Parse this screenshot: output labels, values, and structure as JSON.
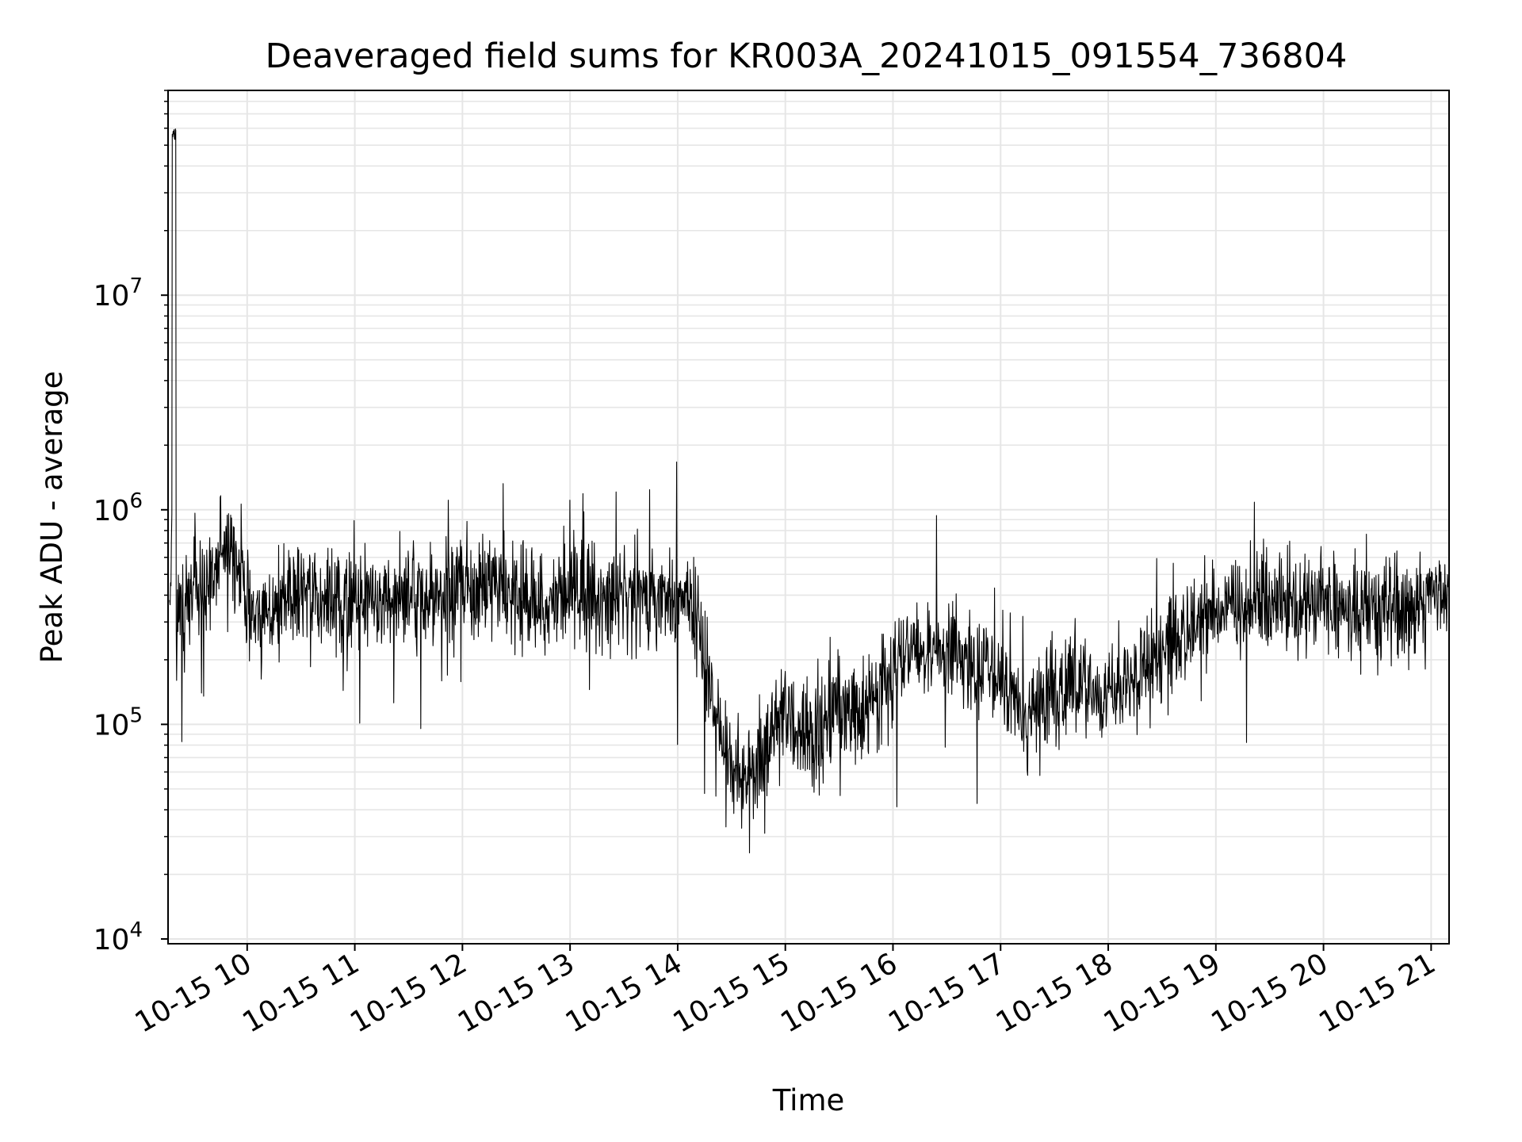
{
  "chart_data": {
    "type": "line",
    "title": "Deaveraged field sums for KR003A_20241015_091554_736804",
    "xlabel": "Time",
    "ylabel": "Peak ADU - average",
    "y_scale": "log",
    "ylim": [
      9500,
      90000000
    ],
    "xlim": [
      "2024-10-15 09:15:54",
      "2024-10-15 21:10:00"
    ],
    "grid": true,
    "line_color": "#000000",
    "x_ticks": [
      {
        "label": "10-15 10",
        "time": "2024-10-15 10:00"
      },
      {
        "label": "10-15 11",
        "time": "2024-10-15 11:00"
      },
      {
        "label": "10-15 12",
        "time": "2024-10-15 12:00"
      },
      {
        "label": "10-15 13",
        "time": "2024-10-15 13:00"
      },
      {
        "label": "10-15 14",
        "time": "2024-10-15 14:00"
      },
      {
        "label": "10-15 15",
        "time": "2024-10-15 15:00"
      },
      {
        "label": "10-15 16",
        "time": "2024-10-15 16:00"
      },
      {
        "label": "10-15 17",
        "time": "2024-10-15 17:00"
      },
      {
        "label": "10-15 18",
        "time": "2024-10-15 18:00"
      },
      {
        "label": "10-15 19",
        "time": "2024-10-15 19:00"
      },
      {
        "label": "10-15 20",
        "time": "2024-10-15 20:00"
      },
      {
        "label": "10-15 21",
        "time": "2024-10-15 21:00"
      }
    ],
    "y_ticks": [
      {
        "value": 10000,
        "base": "10",
        "exp": "4"
      },
      {
        "value": 100000,
        "base": "10",
        "exp": "5"
      },
      {
        "value": 1000000,
        "base": "10",
        "exp": "6"
      },
      {
        "value": 10000000,
        "base": "10",
        "exp": "7"
      }
    ],
    "series": [
      {
        "x": [
          "2024-10-15 09:16",
          "2024-10-15 09:18",
          "2024-10-15 09:20",
          "2024-10-15 09:25",
          "2024-10-15 09:30",
          "2024-10-15 09:35",
          "2024-10-15 09:40",
          "2024-10-15 09:45",
          "2024-10-15 09:50",
          "2024-10-15 09:55",
          "2024-10-15 10:00",
          "2024-10-15 10:10",
          "2024-10-15 10:20",
          "2024-10-15 10:30",
          "2024-10-15 10:40",
          "2024-10-15 10:50",
          "2024-10-15 11:00",
          "2024-10-15 11:15",
          "2024-10-15 11:30",
          "2024-10-15 11:45",
          "2024-10-15 12:00",
          "2024-10-15 12:15",
          "2024-10-15 12:30",
          "2024-10-15 12:45",
          "2024-10-15 13:00",
          "2024-10-15 13:15",
          "2024-10-15 13:30",
          "2024-10-15 13:45",
          "2024-10-15 14:00",
          "2024-10-15 14:10",
          "2024-10-15 14:15",
          "2024-10-15 14:20",
          "2024-10-15 14:30",
          "2024-10-15 14:45",
          "2024-10-15 15:00",
          "2024-10-15 15:15",
          "2024-10-15 15:30",
          "2024-10-15 15:45",
          "2024-10-15 16:00",
          "2024-10-15 16:15",
          "2024-10-15 16:30",
          "2024-10-15 16:45",
          "2024-10-15 17:00",
          "2024-10-15 17:15",
          "2024-10-15 17:30",
          "2024-10-15 17:45",
          "2024-10-15 18:00",
          "2024-10-15 18:15",
          "2024-10-15 18:30",
          "2024-10-15 18:45",
          "2024-10-15 19:00",
          "2024-10-15 19:15",
          "2024-10-15 19:30",
          "2024-10-15 19:45",
          "2024-10-15 20:00",
          "2024-10-15 20:15",
          "2024-10-15 20:30",
          "2024-10-15 20:45",
          "2024-10-15 21:00",
          "2024-10-15 21:10"
        ],
        "y": [
          300000,
          550000,
          320000,
          350000,
          380000,
          420000,
          480000,
          650000,
          700000,
          600000,
          350000,
          320000,
          380000,
          420000,
          380000,
          350000,
          380000,
          400000,
          420000,
          380000,
          450000,
          420000,
          380000,
          350000,
          420000,
          400000,
          380000,
          420000,
          380000,
          350000,
          200000,
          120000,
          60000,
          65000,
          110000,
          90000,
          120000,
          110000,
          180000,
          220000,
          250000,
          190000,
          150000,
          120000,
          140000,
          150000,
          130000,
          170000,
          230000,
          270000,
          330000,
          350000,
          380000,
          370000,
          380000,
          340000,
          330000,
          370000,
          380000,
          390000
        ]
      }
    ]
  }
}
